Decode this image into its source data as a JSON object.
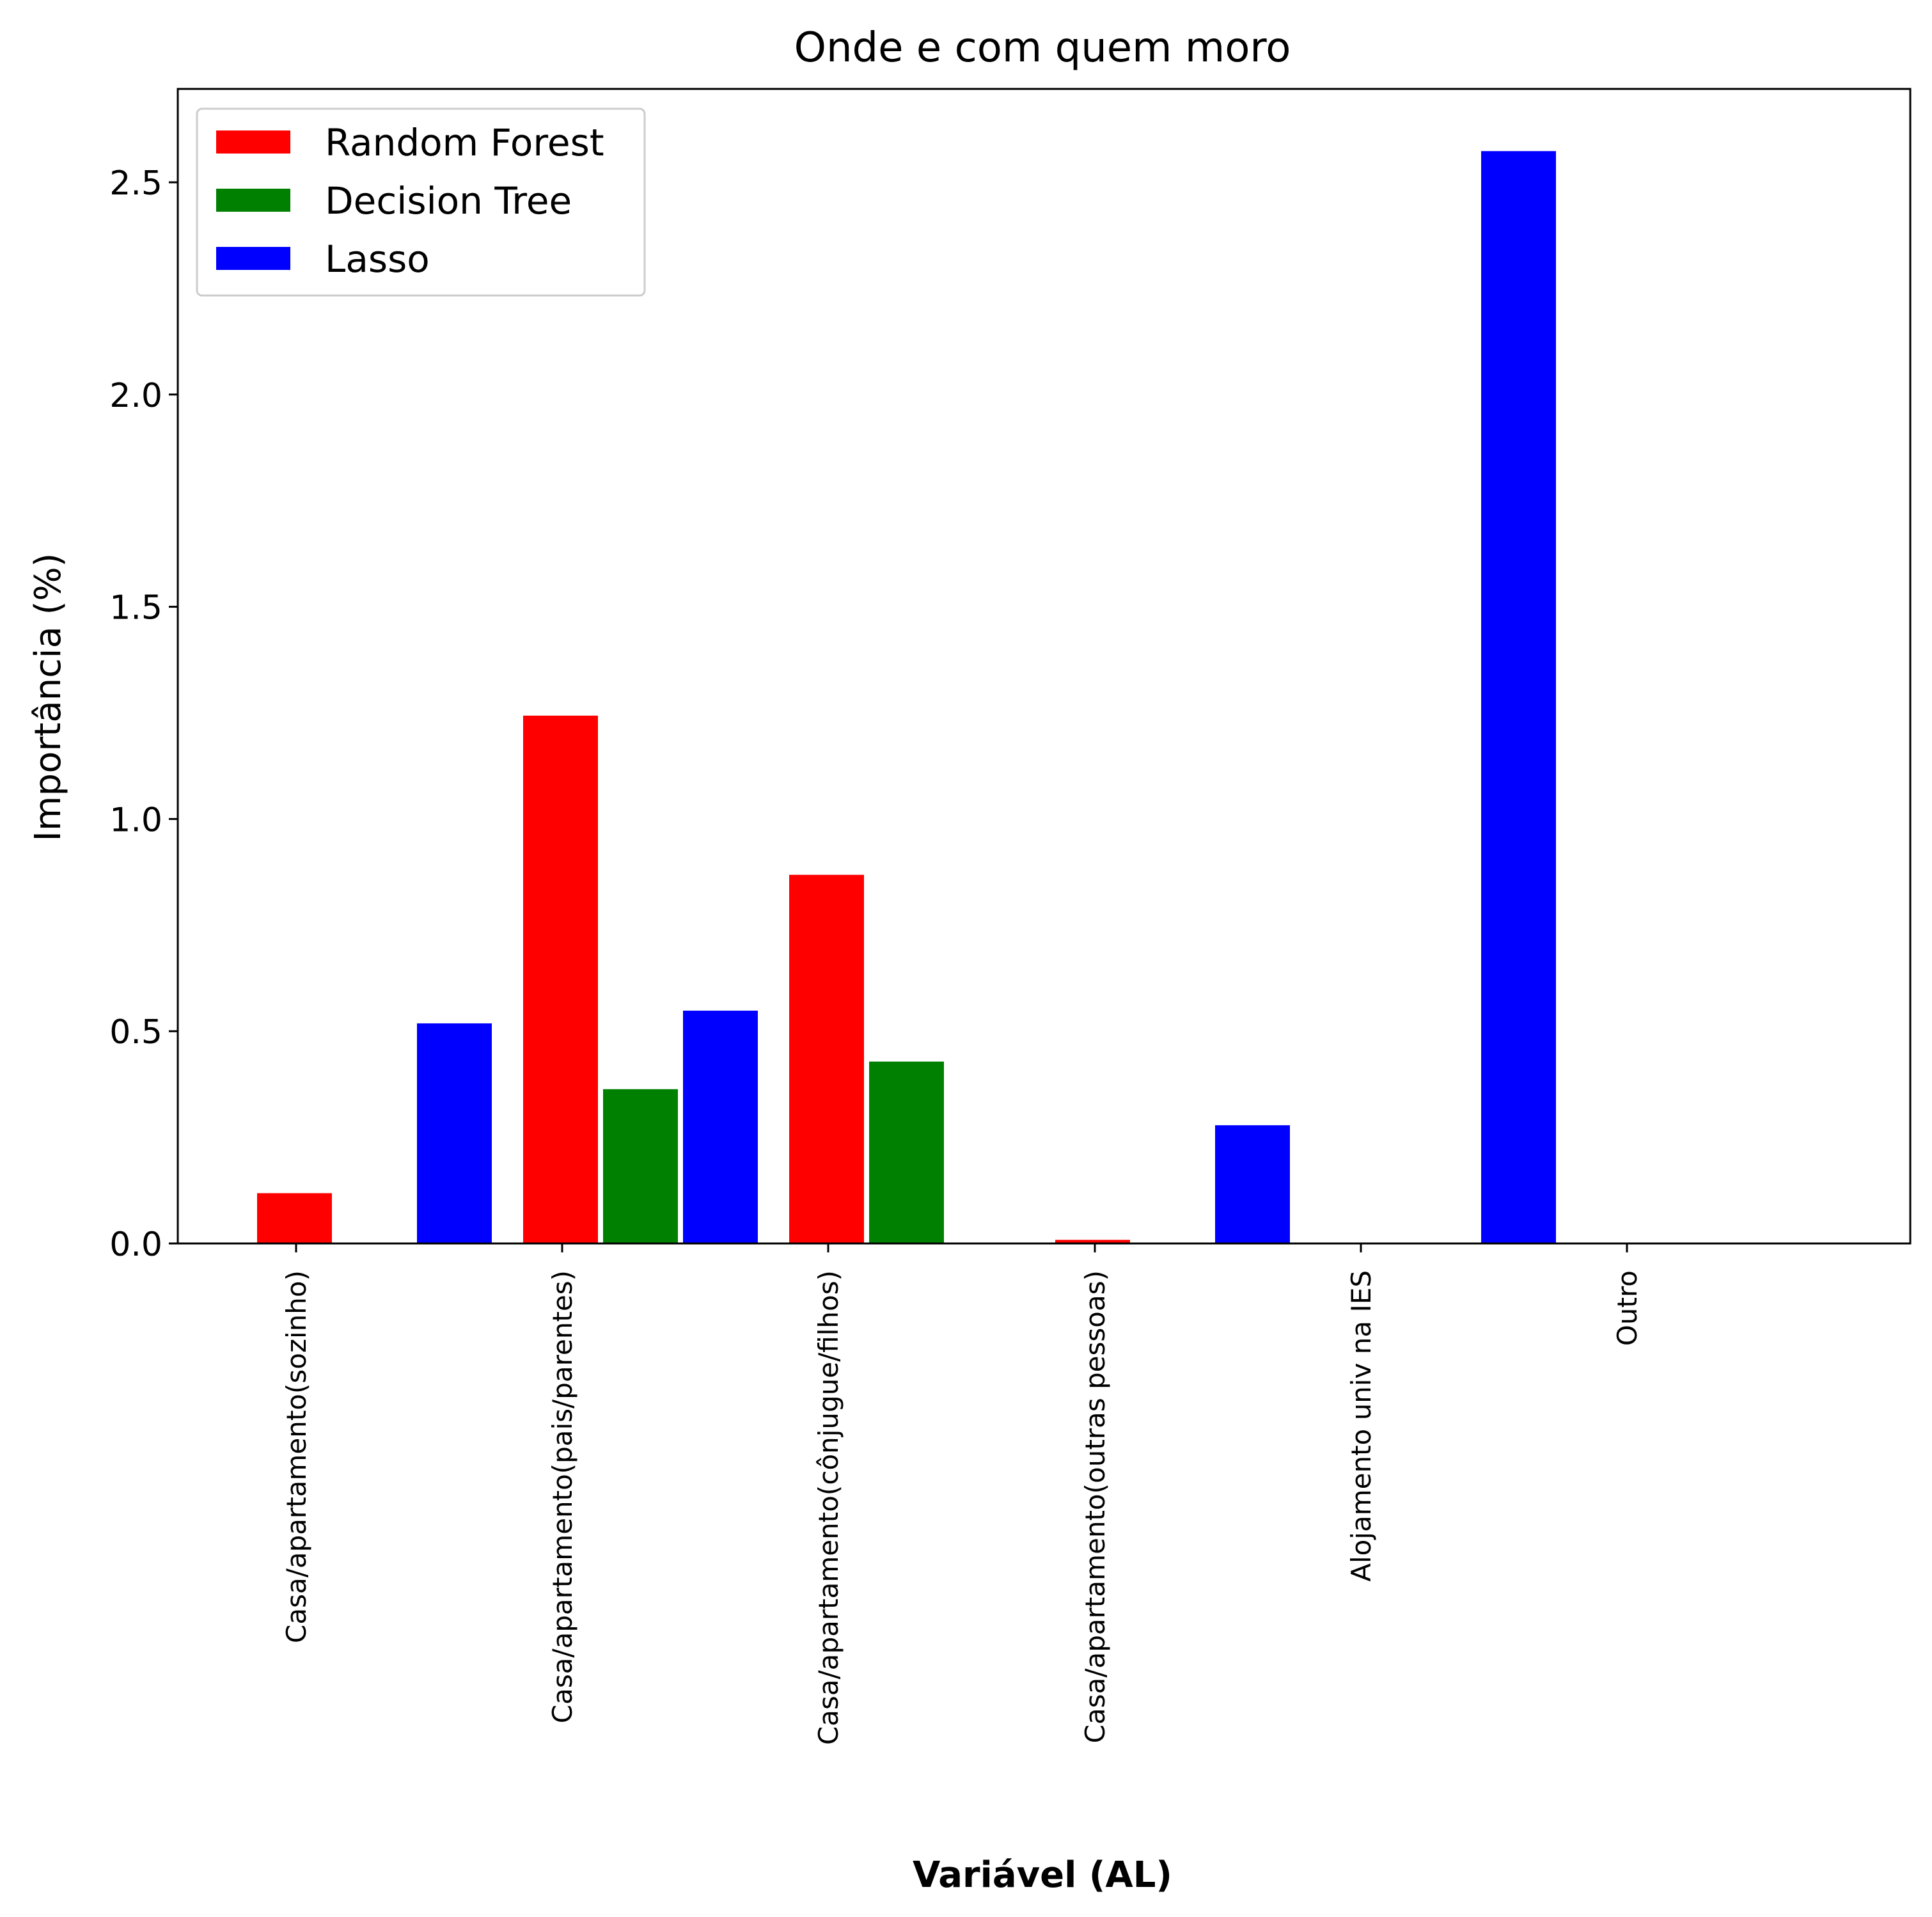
{
  "colors": {
    "Random Forest": "#ff0000",
    "Decision Tree": "#008000",
    "Lasso": "#0000ff"
  },
  "chart_data": {
    "type": "bar",
    "title": "Onde e com quem moro",
    "xlabel": "Variável (AL)",
    "ylabel": "Importância (%)",
    "categories": [
      "Casa/apartamento(sozinho)",
      "Casa/apartamento(pais/parentes)",
      "Casa/apartamento(cônjugue/filhos)",
      "Casa/apartamento(outras pessoas)",
      "Alojamento univ na IES",
      "Outro"
    ],
    "series": [
      {
        "name": "Random Forest",
        "values": [
          0.12,
          1.245,
          0.87,
          0.01,
          0.0,
          0.0
        ]
      },
      {
        "name": "Decision Tree",
        "values": [
          0.0,
          0.365,
          0.43,
          0.0,
          0.0,
          0.0
        ]
      },
      {
        "name": "Lasso",
        "values": [
          0.52,
          0.55,
          0.0,
          0.28,
          2.575,
          0.0
        ]
      }
    ],
    "ylim": [
      0,
      2.72
    ],
    "yticks": [
      "0.0",
      "0.5",
      "1.0",
      "1.5",
      "2.0",
      "2.5"
    ],
    "ytick_values": [
      0,
      0.5,
      1.0,
      1.5,
      2.0,
      2.5
    ],
    "legend": "top-left",
    "grid": false
  }
}
